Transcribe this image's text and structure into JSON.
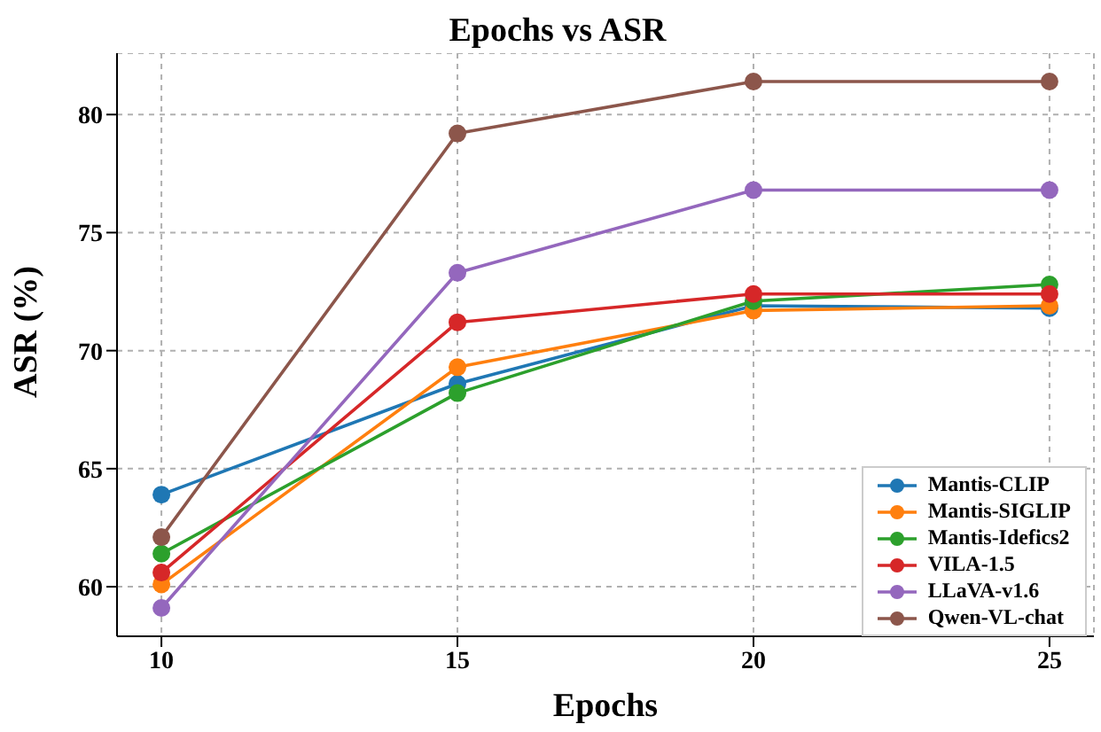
{
  "chart_data": {
    "type": "line",
    "title": "Epochs vs ASR",
    "xlabel": "Epochs",
    "ylabel": "ASR (%)",
    "x": [
      10,
      15,
      20,
      25
    ],
    "series": [
      {
        "name": "Mantis-CLIP",
        "color": "#1f77b4",
        "values": [
          63.9,
          68.6,
          71.9,
          71.8
        ]
      },
      {
        "name": "Mantis-SIGLIP",
        "color": "#ff7f0e",
        "values": [
          60.1,
          69.3,
          71.7,
          71.9
        ]
      },
      {
        "name": "Mantis-Idefics2",
        "color": "#2ca02c",
        "values": [
          61.4,
          68.2,
          72.1,
          72.8
        ]
      },
      {
        "name": "VILA-1.5",
        "color": "#d62728",
        "values": [
          60.6,
          71.2,
          72.4,
          72.4
        ]
      },
      {
        "name": "LLaVA-v1.6",
        "color": "#9467bd",
        "values": [
          59.1,
          73.3,
          76.8,
          76.8
        ]
      },
      {
        "name": "Qwen-VL-chat",
        "color": "#8c564b",
        "values": [
          62.1,
          79.2,
          81.4,
          81.4
        ]
      }
    ],
    "xlim": [
      9.25,
      25.75
    ],
    "xticks": [
      10,
      15,
      20,
      25
    ],
    "ylim": [
      57.9,
      82.6
    ],
    "yticks": [
      60,
      65,
      70,
      75,
      80
    ],
    "grid": true,
    "legend": "bottom right",
    "marker": "circle",
    "line_style": "solid"
  }
}
